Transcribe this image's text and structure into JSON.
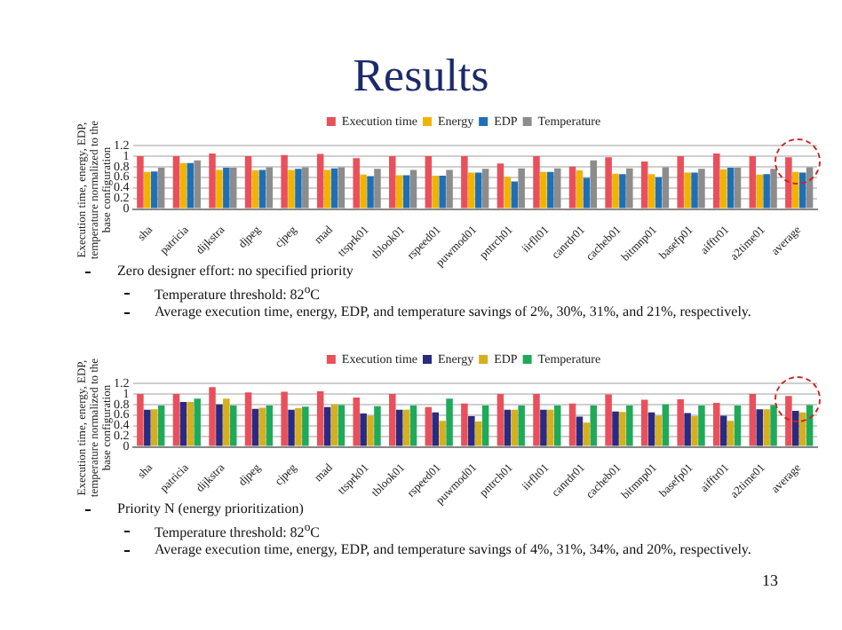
{
  "chart_data": [
    {
      "type": "bar",
      "title": "Results",
      "ylabel": "Execution time, energy, EDP, temperature normalized to the base configuration",
      "categories": [
        "sha",
        "patricia",
        "dijkstra",
        "djpeg",
        "cjpeg",
        "mad",
        "ttsprk01",
        "tblook01",
        "rspeed01",
        "puwmod01",
        "pntrch01",
        "iirflt01",
        "canrdr01",
        "cacheb01",
        "bitmnp01",
        "basefp01",
        "aifftr01",
        "a2time01",
        "average"
      ],
      "series": [
        {
          "name": "Execution time",
          "color": "#e8515b",
          "values": [
            1.0,
            1.0,
            1.05,
            1.0,
            1.02,
            1.04,
            0.96,
            1.0,
            1.0,
            1.0,
            0.86,
            1.0,
            0.8,
            0.98,
            0.9,
            1.0,
            1.05,
            1.0,
            0.98
          ]
        },
        {
          "name": "Energy",
          "color": "#f0b400",
          "values": [
            0.7,
            0.87,
            0.74,
            0.73,
            0.74,
            0.74,
            0.65,
            0.64,
            0.63,
            0.69,
            0.61,
            0.7,
            0.73,
            0.67,
            0.66,
            0.69,
            0.75,
            0.65,
            0.7
          ]
        },
        {
          "name": "EDP",
          "color": "#1f6fb5",
          "values": [
            0.71,
            0.87,
            0.78,
            0.74,
            0.76,
            0.77,
            0.62,
            0.64,
            0.63,
            0.69,
            0.52,
            0.7,
            0.59,
            0.66,
            0.6,
            0.69,
            0.78,
            0.66,
            0.69
          ]
        },
        {
          "name": "Temperature",
          "color": "#8c8c8c",
          "values": [
            0.78,
            0.92,
            0.78,
            0.79,
            0.79,
            0.79,
            0.76,
            0.74,
            0.74,
            0.76,
            0.77,
            0.77,
            0.92,
            0.77,
            0.79,
            0.76,
            0.78,
            0.76,
            0.79
          ]
        }
      ],
      "ylim": [
        0,
        1.2
      ],
      "yticks": [
        0,
        0.2,
        0.4,
        0.6,
        0.8,
        1,
        1.2
      ],
      "grid": "y",
      "legend": "top",
      "annotations": [
        "Zero designer effort: no specified priority",
        "Temperature threshold: 82$^{o}$C",
        "Average execution time, energy, EDP, and temperature savings of 2%, 30%, 31%, and 21%, respectively."
      ]
    },
    {
      "type": "bar",
      "ylabel": "Execution time, energy, EDP, temperature normalized to the base configuration",
      "categories": [
        "sha",
        "patricia",
        "dijkstra",
        "djpeg",
        "cjpeg",
        "mad",
        "ttsprk01",
        "tblook01",
        "rspeed01",
        "puwmod01",
        "pntrch01",
        "iirflt01",
        "canrdr01",
        "cacheb01",
        "bitmnp01",
        "basefp01",
        "aifftr01",
        "a2time01",
        "average"
      ],
      "series": [
        {
          "name": "Execution time",
          "color": "#e8515b",
          "values": [
            1.0,
            1.0,
            1.13,
            1.03,
            1.04,
            1.05,
            0.93,
            1.0,
            0.75,
            0.82,
            1.0,
            1.0,
            0.82,
            0.99,
            0.89,
            0.9,
            0.83,
            1.0,
            0.96
          ]
        },
        {
          "name": "Energy",
          "color": "#2b2a80",
          "values": [
            0.7,
            0.85,
            0.8,
            0.72,
            0.7,
            0.75,
            0.63,
            0.7,
            0.65,
            0.58,
            0.7,
            0.7,
            0.57,
            0.67,
            0.65,
            0.64,
            0.59,
            0.71,
            0.68
          ]
        },
        {
          "name": "EDP",
          "color": "#d4b020",
          "values": [
            0.71,
            0.85,
            0.91,
            0.74,
            0.73,
            0.8,
            0.59,
            0.7,
            0.49,
            0.48,
            0.7,
            0.7,
            0.46,
            0.66,
            0.59,
            0.58,
            0.49,
            0.71,
            0.65
          ]
        },
        {
          "name": "Temperature",
          "color": "#1faa5a",
          "values": [
            0.78,
            0.91,
            0.78,
            0.78,
            0.76,
            0.79,
            0.77,
            0.78,
            0.91,
            0.78,
            0.78,
            0.78,
            0.78,
            0.78,
            0.8,
            0.78,
            0.78,
            0.79,
            0.79
          ]
        }
      ],
      "ylim": [
        0,
        1.2
      ],
      "yticks": [
        0,
        0.2,
        0.4,
        0.6,
        0.8,
        1,
        1.2
      ],
      "grid": "y",
      "legend": "top",
      "annotations": [
        "Priority N (energy prioritization)",
        "Temperature threshold: 82$^{o}$C",
        "Average execution time, energy, EDP, and temperature savings of 4%, 31%, 34%, and 20%, respectively.",
        "13"
      ]
    }
  ]
}
